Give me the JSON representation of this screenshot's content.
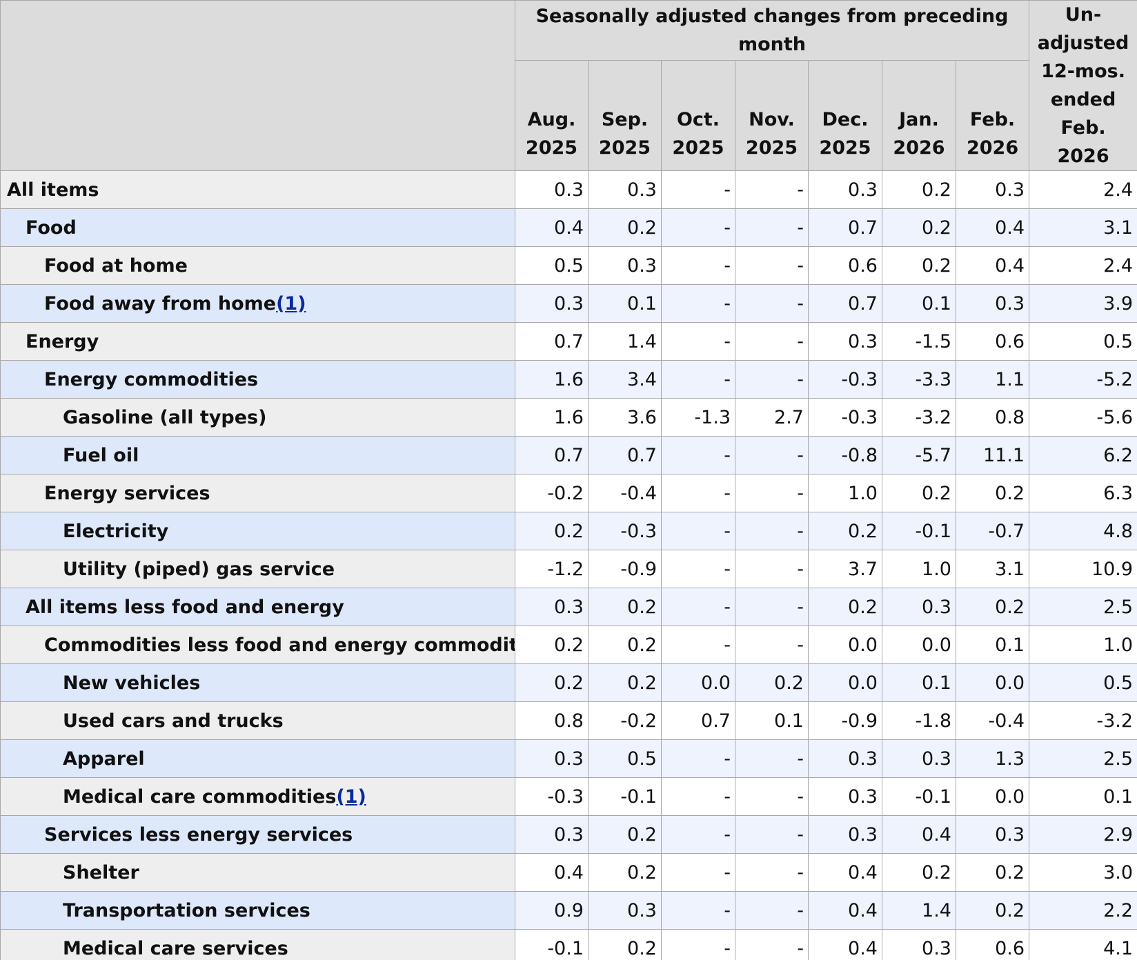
{
  "table": {
    "group_header": "Seasonally adjusted changes from preceding month",
    "unadjusted_header": "Un-adjusted 12-mos. ended Feb. 2026",
    "columns": [
      "Aug. 2025",
      "Sep. 2025",
      "Oct. 2025",
      "Nov. 2025",
      "Dec. 2025",
      "Jan. 2026",
      "Feb. 2026"
    ],
    "rows": [
      {
        "label": "All items",
        "values": [
          "0.3",
          "0.3",
          "-",
          "-",
          "0.3",
          "0.2",
          "0.3",
          "2.4"
        ]
      },
      {
        "label": "Food",
        "values": [
          "0.4",
          "0.2",
          "-",
          "-",
          "0.7",
          "0.2",
          "0.4",
          "3.1"
        ]
      },
      {
        "label": "Food at home",
        "values": [
          "0.5",
          "0.3",
          "-",
          "-",
          "0.6",
          "0.2",
          "0.4",
          "2.4"
        ]
      },
      {
        "label": "Food away from home",
        "note": "(1)",
        "values": [
          "0.3",
          "0.1",
          "-",
          "-",
          "0.7",
          "0.1",
          "0.3",
          "3.9"
        ]
      },
      {
        "label": "Energy",
        "values": [
          "0.7",
          "1.4",
          "-",
          "-",
          "0.3",
          "-1.5",
          "0.6",
          "0.5"
        ]
      },
      {
        "label": "Energy commodities",
        "values": [
          "1.6",
          "3.4",
          "-",
          "-",
          "-0.3",
          "-3.3",
          "1.1",
          "-5.2"
        ]
      },
      {
        "label": "Gasoline (all types)",
        "values": [
          "1.6",
          "3.6",
          "-1.3",
          "2.7",
          "-0.3",
          "-3.2",
          "0.8",
          "-5.6"
        ]
      },
      {
        "label": "Fuel oil",
        "values": [
          "0.7",
          "0.7",
          "-",
          "-",
          "-0.8",
          "-5.7",
          "11.1",
          "6.2"
        ]
      },
      {
        "label": "Energy services",
        "values": [
          "-0.2",
          "-0.4",
          "-",
          "-",
          "1.0",
          "0.2",
          "0.2",
          "6.3"
        ]
      },
      {
        "label": "Electricity",
        "values": [
          "0.2",
          "-0.3",
          "-",
          "-",
          "0.2",
          "-0.1",
          "-0.7",
          "4.8"
        ]
      },
      {
        "label": "Utility (piped) gas service",
        "values": [
          "-1.2",
          "-0.9",
          "-",
          "-",
          "3.7",
          "1.0",
          "3.1",
          "10.9"
        ]
      },
      {
        "label": "All items less food and energy",
        "values": [
          "0.3",
          "0.2",
          "-",
          "-",
          "0.2",
          "0.3",
          "0.2",
          "2.5"
        ]
      },
      {
        "label": "Commodities less food and energy commodities",
        "values": [
          "0.2",
          "0.2",
          "-",
          "-",
          "0.0",
          "0.0",
          "0.1",
          "1.0"
        ]
      },
      {
        "label": "New vehicles",
        "values": [
          "0.2",
          "0.2",
          "0.0",
          "0.2",
          "0.0",
          "0.1",
          "0.0",
          "0.5"
        ]
      },
      {
        "label": "Used cars and trucks",
        "values": [
          "0.8",
          "-0.2",
          "0.7",
          "0.1",
          "-0.9",
          "-1.8",
          "-0.4",
          "-3.2"
        ]
      },
      {
        "label": "Apparel",
        "values": [
          "0.3",
          "0.5",
          "-",
          "-",
          "0.3",
          "0.3",
          "1.3",
          "2.5"
        ]
      },
      {
        "label": "Medical care commodities",
        "note": "(1)",
        "values": [
          "-0.3",
          "-0.1",
          "-",
          "-",
          "0.3",
          "-0.1",
          "0.0",
          "0.1"
        ]
      },
      {
        "label": "Services less energy services",
        "values": [
          "0.3",
          "0.2",
          "-",
          "-",
          "0.3",
          "0.4",
          "0.3",
          "2.9"
        ]
      },
      {
        "label": "Shelter",
        "values": [
          "0.4",
          "0.2",
          "-",
          "-",
          "0.4",
          "0.2",
          "0.2",
          "3.0"
        ]
      },
      {
        "label": "Transportation services",
        "values": [
          "0.9",
          "0.3",
          "-",
          "-",
          "0.4",
          "1.4",
          "0.2",
          "2.2"
        ]
      },
      {
        "label": "Medical care services",
        "values": [
          "-0.1",
          "0.2",
          "-",
          "-",
          "0.4",
          "0.3",
          "0.6",
          "4.1"
        ]
      }
    ]
  }
}
